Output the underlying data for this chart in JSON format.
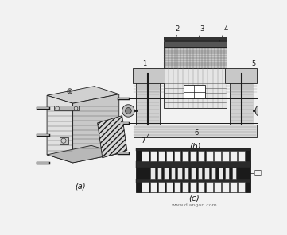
{
  "bg_color": "#f2f2f2",
  "label_a": "(a)",
  "label_b": "(b)",
  "label_c": "(c)",
  "watermark": "www.diangon.com",
  "label_qiaolian": "閔桥",
  "numbers": [
    "1",
    "2",
    "3",
    "4",
    "5",
    "6",
    "7"
  ],
  "dark": "#1a1a1a",
  "gray": "#888888",
  "lgray": "#cccccc",
  "dgray": "#555555",
  "white": "#ffffff"
}
